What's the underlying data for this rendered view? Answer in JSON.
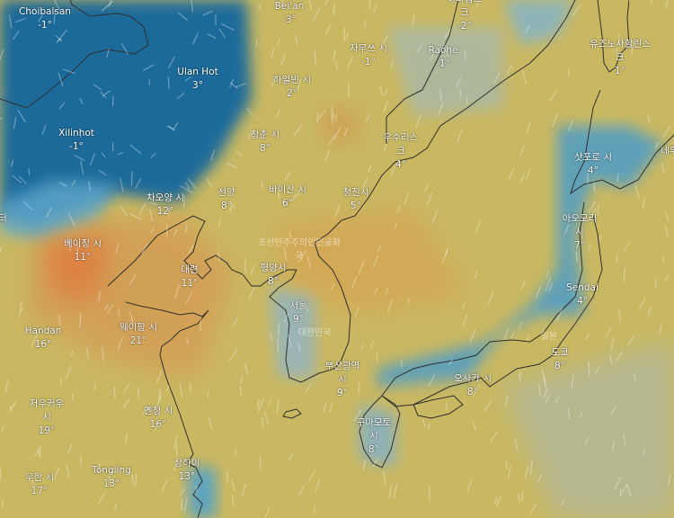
{
  "map": {
    "colors": {
      "cold": "#1f6f9e",
      "cool": "#6aaecf",
      "mild": "#c8b95f",
      "warm": "#d99a4a",
      "hot": "#e0773a",
      "coast": "#2b2b2b"
    },
    "wind_particles": "white-streaks",
    "cities": [
      {
        "name": "Choibalsan",
        "temp": "-1°"
      },
      {
        "name": "Bei'an",
        "temp": "-3°"
      },
      {
        "name": "하바롭스",
        "name2": "크",
        "temp": "-2°"
      },
      {
        "name": "자무쓰 시",
        "temp": "-1°"
      },
      {
        "name": "Raohe",
        "temp": "-1°"
      },
      {
        "name": "유즈노사할린스",
        "name2": "크",
        "temp": "1°"
      },
      {
        "name": "Ulan Hot",
        "temp": "3°"
      },
      {
        "name": "하얼빈 시",
        "temp": "2°"
      },
      {
        "name": "Xilinhot",
        "temp": "-1°"
      },
      {
        "name": "창춘 시",
        "temp": "8°"
      },
      {
        "name": "우수리스",
        "name2": "크",
        "temp": "4°"
      },
      {
        "name": "삿포로 시",
        "temp": "4°"
      },
      {
        "name": "바이산 시",
        "temp": "6°"
      },
      {
        "name": "청진시",
        "temp": "5°"
      },
      {
        "name": "선양",
        "temp": "8°"
      },
      {
        "name": "차오양 시",
        "temp": "12°"
      },
      {
        "name": "아오모리",
        "name2": "시",
        "temp": "7°"
      },
      {
        "name": "베이징 시",
        "temp": "11°"
      },
      {
        "name": "대련",
        "temp": "11°"
      },
      {
        "name": "평양시",
        "temp": "8°"
      },
      {
        "name": "Sendai",
        "temp": "4°"
      },
      {
        "name": "서울",
        "temp": "9°"
      },
      {
        "name": "Handan",
        "temp": "16°"
      },
      {
        "name": "웨이팡 시",
        "temp": "21°"
      },
      {
        "name": "도쿄",
        "temp": "8°"
      },
      {
        "name": "부산광역",
        "name2": "시",
        "temp": "9°"
      },
      {
        "name": "오사카 시",
        "temp": "8°"
      },
      {
        "name": "저우커우",
        "name2": "시",
        "temp": "19°"
      },
      {
        "name": "옌청 시",
        "temp": "16°"
      },
      {
        "name": "구마모토",
        "name2": "시",
        "temp": "8°"
      },
      {
        "name": "상하이",
        "temp": "13°"
      },
      {
        "name": "Tongling",
        "temp": "13°"
      },
      {
        "name": "우한 시",
        "temp": "17°"
      },
      {
        "name": "터"
      },
      {
        "name": "네무"
      }
    ],
    "countries": [
      "조선민주주의인민공화",
      "국",
      "대한민국",
      "일본"
    ]
  }
}
